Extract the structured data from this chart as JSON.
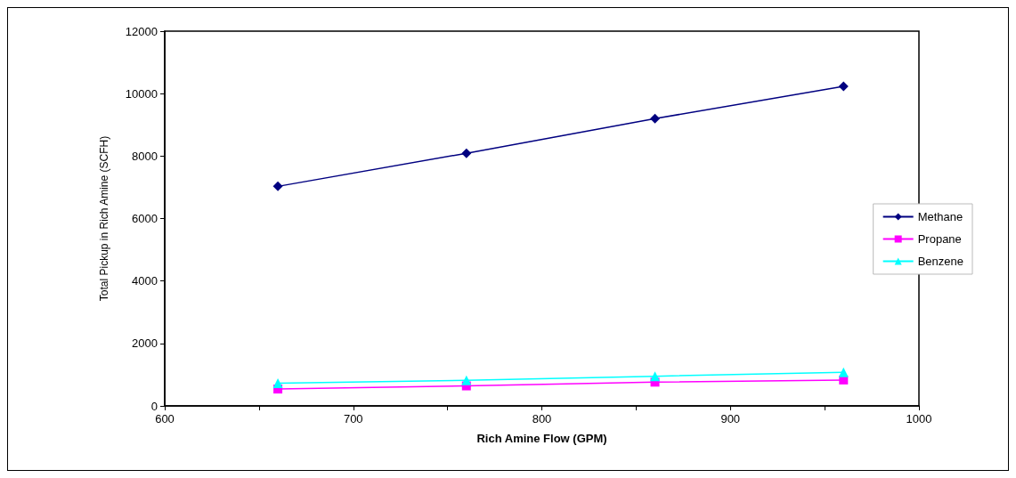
{
  "chart_data": {
    "type": "line",
    "xlabel": "Rich Amine Flow (GPM)",
    "ylabel": "Total Pickup in Rich Amine (SCFH)",
    "x": [
      660,
      760,
      860,
      960
    ],
    "series": [
      {
        "name": "Methane",
        "color": "#000080",
        "marker": "diamond",
        "values": [
          7030,
          8090,
          9200,
          10230
        ]
      },
      {
        "name": "Propane",
        "color": "#ff00ff",
        "marker": "square",
        "values": [
          540,
          640,
          760,
          830
        ]
      },
      {
        "name": "Benzene",
        "color": "#00ffff",
        "marker": "triangle",
        "values": [
          730,
          820,
          950,
          1075
        ]
      }
    ],
    "xlim": [
      600,
      1000
    ],
    "xticks": [
      600,
      {
        "value": 650,
        "label": null
      },
      700,
      {
        "value": 750,
        "label": null
      },
      800,
      {
        "value": 850,
        "label": null
      },
      900,
      {
        "value": 950,
        "label": null
      },
      1000
    ],
    "ylim": [
      0,
      12000
    ],
    "yticks": [
      0,
      2000,
      4000,
      6000,
      8000,
      10000,
      12000
    ],
    "grid": false,
    "legend": "right",
    "line_style": "solid"
  }
}
